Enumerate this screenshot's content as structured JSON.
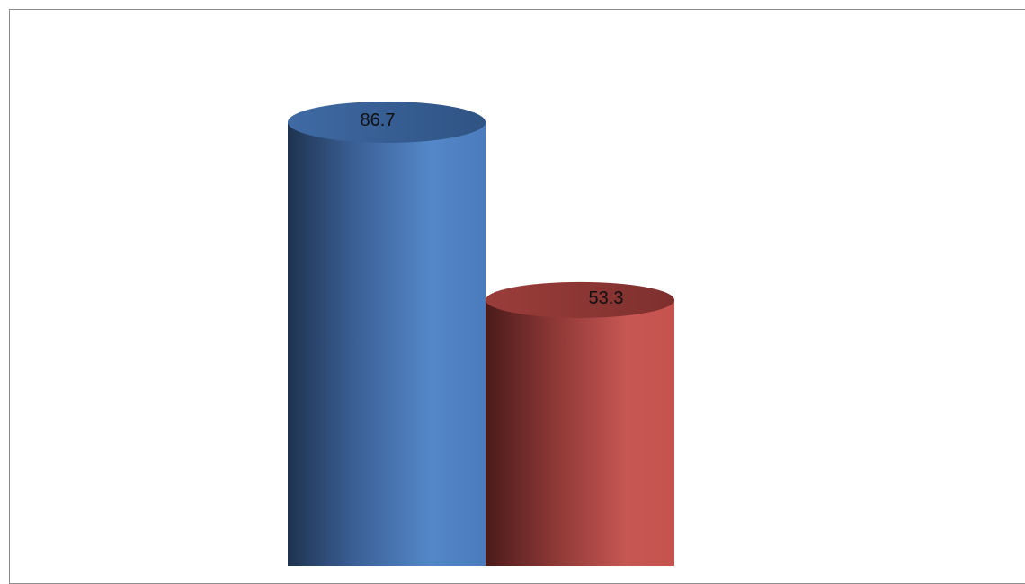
{
  "chart_data": {
    "type": "bar",
    "style": "3d-cylinder",
    "categories": [
      "",
      ""
    ],
    "series": [
      {
        "values": [
          86.7,
          53.3
        ]
      }
    ],
    "data_labels": [
      "86.7",
      "53.3"
    ],
    "title": "",
    "xlabel": "",
    "ylabel": "",
    "grid": false,
    "legend": "none",
    "colors": {
      "bar_1": "#4f81bd",
      "bar_2": "#c0504d"
    }
  }
}
